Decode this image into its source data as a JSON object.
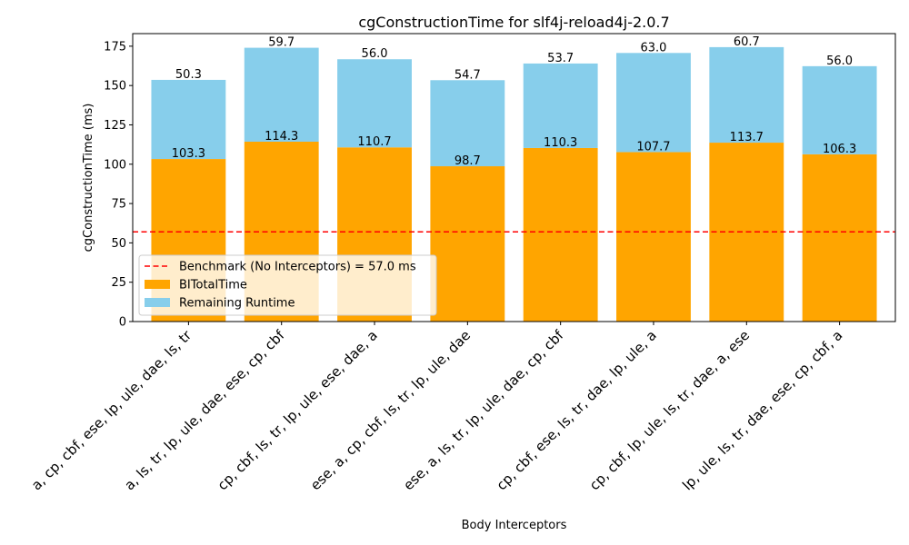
{
  "chart_data": {
    "type": "bar",
    "stacked": true,
    "title": "cgConstructionTime for slf4j-reload4j-2.0.7",
    "xlabel": "Body Interceptors",
    "ylabel": "cgConstructionTime (ms)",
    "ylim": [
      0,
      183
    ],
    "yticks": [
      0,
      25,
      50,
      75,
      100,
      125,
      150,
      175
    ],
    "categories": [
      "a, cp, cbf, ese, lp, ule, dae, ls, tr",
      "a, ls, tr, lp, ule, dae, ese, cp, cbf",
      "cp, cbf, ls, tr, lp, ule, ese, dae, a",
      "ese, a, cp, cbf, ls, tr, lp, ule, dae",
      "ese, a, ls, tr, lp, ule, dae, cp, cbf",
      "cp, cbf, ese, ls, tr, dae, lp, ule, a",
      "cp, cbf, lp, ule, ls, tr, dae, a, ese",
      "lp, ule, ls, tr, dae, ese, cp, cbf, a"
    ],
    "series": [
      {
        "name": "BITotalTime",
        "color": "#ffa500",
        "values": [
          103.3,
          114.3,
          110.7,
          98.7,
          110.3,
          107.7,
          113.7,
          106.3
        ],
        "labels": [
          "103.3",
          "114.3",
          "110.7",
          "98.7",
          "110.3",
          "107.7",
          "113.7",
          "106.3"
        ]
      },
      {
        "name": "Remaining Runtime",
        "color": "#87ceeb",
        "values": [
          50.3,
          59.7,
          56.0,
          54.7,
          53.7,
          63.0,
          60.7,
          56.0
        ],
        "labels": [
          "50.3",
          "59.7",
          "56.0",
          "54.7",
          "53.7",
          "63.0",
          "60.7",
          "56.0"
        ]
      }
    ],
    "benchmark": {
      "label": "Benchmark (No Interceptors) = 57.0 ms",
      "value": 57.0,
      "color": "#ff0000",
      "style": "dashed"
    },
    "legend_position": "lower-left",
    "grid": false
  }
}
